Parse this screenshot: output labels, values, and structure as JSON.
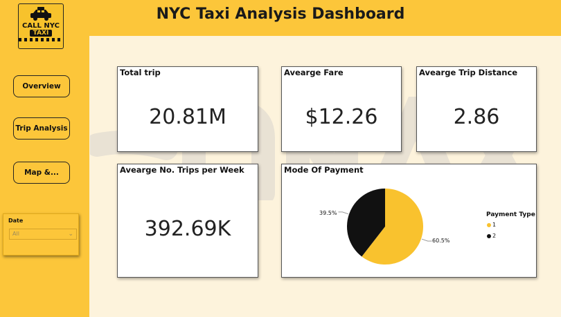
{
  "header": {
    "title": "NYC Taxi Analysis Dashboard"
  },
  "logo": {
    "line1": "CALL NYC",
    "line2": "TAXI"
  },
  "nav": [
    {
      "label": "Overview"
    },
    {
      "label": "Trip Analysis"
    },
    {
      "label": "Map &..."
    }
  ],
  "slicer": {
    "label": "Date",
    "value": "All"
  },
  "cards": {
    "total_trip": {
      "title": "Total trip",
      "value": "20.81M"
    },
    "avg_fare": {
      "title": "Avearge Fare",
      "value": "$12.26"
    },
    "avg_distance": {
      "title": "Avearge Trip Distance",
      "value": "2.86"
    },
    "avg_trips_week": {
      "title": "Avearge No. Trips per Week",
      "value": "392.69K"
    }
  },
  "payment": {
    "title": "Mode Of Payment",
    "legend_title": "Payment Type",
    "labels": [
      "60.5%",
      "39.5%"
    ]
  },
  "colors": {
    "accent": "#fcc63a",
    "dark": "#111111",
    "background": "#fdf3dc"
  },
  "chart_data": {
    "type": "pie",
    "title": "Mode Of Payment",
    "legend_title": "Payment Type",
    "categories": [
      "1",
      "2"
    ],
    "values": [
      60.5,
      39.5
    ],
    "colors": [
      "#f9c22e",
      "#111111"
    ]
  }
}
